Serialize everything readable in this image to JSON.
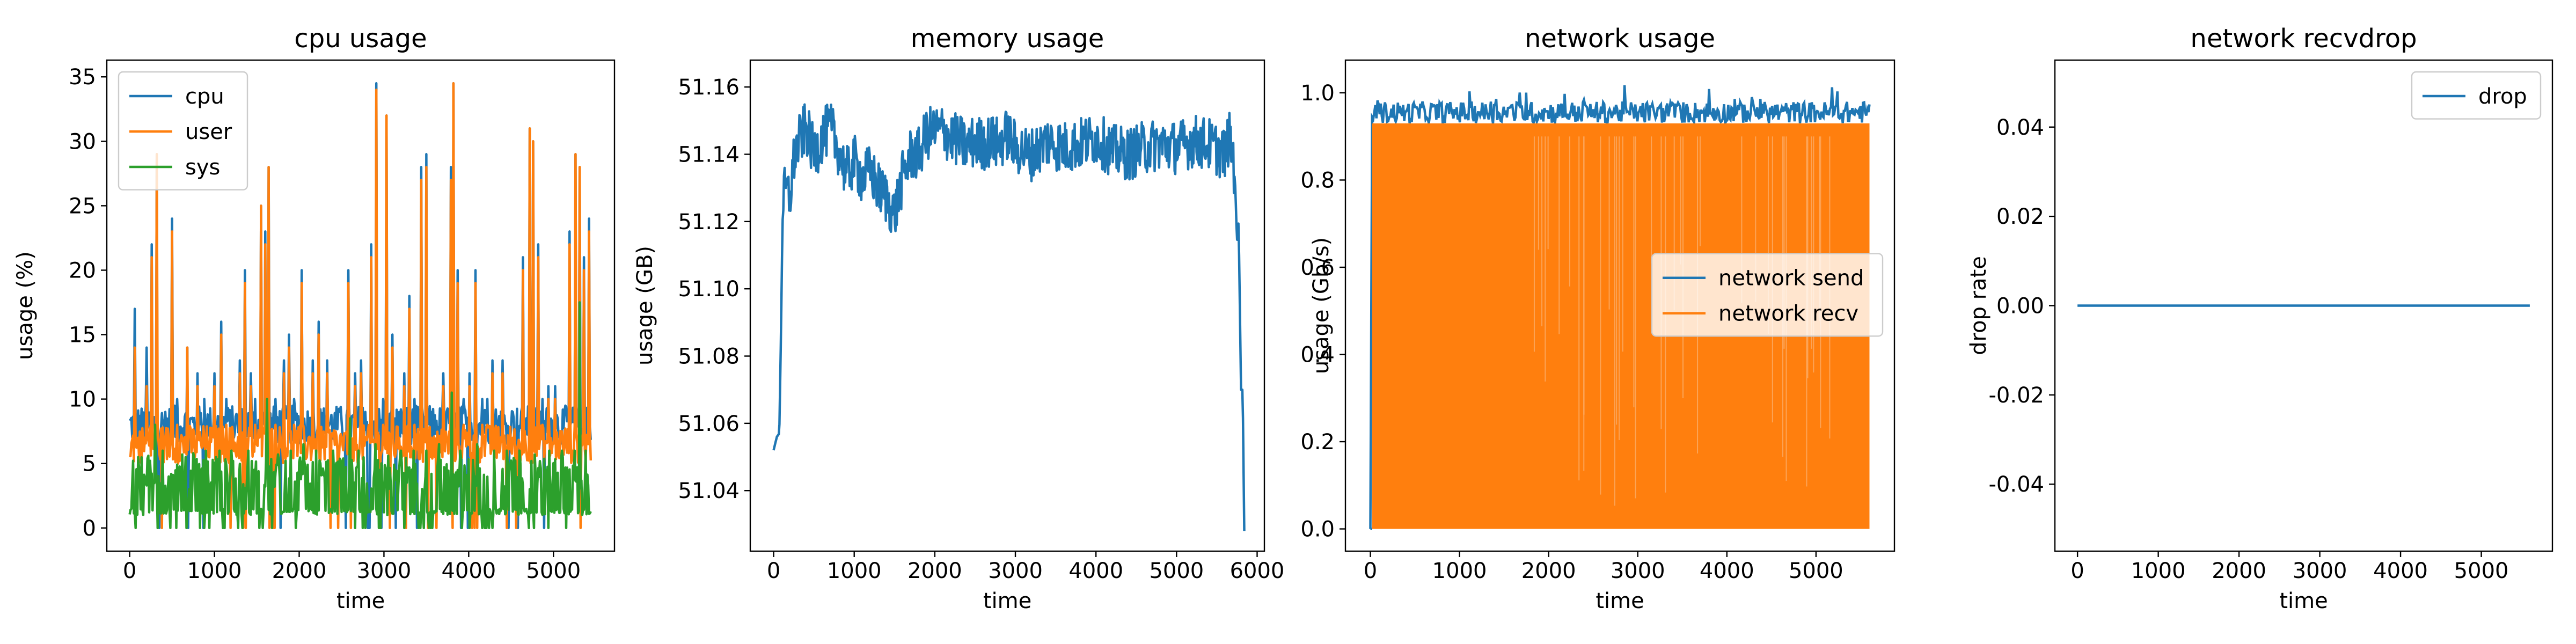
{
  "chart_data": [
    {
      "type": "line",
      "title": "cpu usage",
      "xlabel": "time",
      "ylabel": "usage (%)",
      "xlim": [
        -270,
        5720
      ],
      "ylim": [
        -1.8,
        36.3
      ],
      "xticks": [
        0,
        1000,
        2000,
        3000,
        4000,
        5000
      ],
      "yticks": [
        0,
        5,
        10,
        15,
        20,
        25,
        30,
        35
      ],
      "legend_location": "upper left",
      "x_max": 5440,
      "series": [
        {
          "name": "cpu",
          "color": "#1f77b4",
          "baseline_band": [
            6.5,
            9.5
          ],
          "spikes": [
            [
              60,
              17
            ],
            [
              200,
              14
            ],
            [
              260,
              22
            ],
            [
              320,
              29
            ],
            [
              420,
              9
            ],
            [
              500,
              24
            ],
            [
              560,
              10
            ],
            [
              680,
              14
            ],
            [
              800,
              12
            ],
            [
              880,
              10
            ],
            [
              1000,
              12
            ],
            [
              1080,
              16
            ],
            [
              1140,
              10
            ],
            [
              1300,
              13
            ],
            [
              1360,
              20
            ],
            [
              1430,
              12
            ],
            [
              1480,
              10
            ],
            [
              1550,
              25
            ],
            [
              1600,
              23
            ],
            [
              1640,
              28
            ],
            [
              1720,
              10
            ],
            [
              1820,
              13
            ],
            [
              1880,
              15
            ],
            [
              1940,
              10
            ],
            [
              2030,
              20
            ],
            [
              2160,
              13
            ],
            [
              2230,
              16
            ],
            [
              2330,
              13
            ],
            [
              2480,
              9
            ],
            [
              2580,
              20
            ],
            [
              2660,
              12
            ],
            [
              2730,
              13
            ],
            [
              2780,
              9
            ],
            [
              2850,
              22
            ],
            [
              2910,
              34.5
            ],
            [
              2990,
              10
            ],
            [
              3030,
              32
            ],
            [
              3100,
              15
            ],
            [
              3180,
              9
            ],
            [
              3240,
              12
            ],
            [
              3300,
              18
            ],
            [
              3360,
              10
            ],
            [
              3440,
              28
            ],
            [
              3500,
              29
            ],
            [
              3560,
              9
            ],
            [
              3700,
              12
            ],
            [
              3790,
              28
            ],
            [
              3820,
              34.5
            ],
            [
              3870,
              20
            ],
            [
              3940,
              10
            ],
            [
              4010,
              12
            ],
            [
              4080,
              20
            ],
            [
              4160,
              10
            ],
            [
              4220,
              10
            ],
            [
              4280,
              13
            ],
            [
              4400,
              13
            ],
            [
              4520,
              9
            ],
            [
              4640,
              21
            ],
            [
              4720,
              31
            ],
            [
              4760,
              30
            ],
            [
              4820,
              22
            ],
            [
              4870,
              10
            ],
            [
              4940,
              11
            ],
            [
              5020,
              11
            ],
            [
              5130,
              9
            ],
            [
              5190,
              23
            ],
            [
              5260,
              29
            ],
            [
              5310,
              28
            ],
            [
              5360,
              21
            ],
            [
              5420,
              24
            ]
          ]
        },
        {
          "name": "user",
          "color": "#ff7f0e",
          "baseline_band": [
            5,
            8
          ],
          "spikes": [
            [
              60,
              14
            ],
            [
              200,
              11
            ],
            [
              260,
              21
            ],
            [
              320,
              29
            ],
            [
              420,
              7
            ],
            [
              500,
              23
            ],
            [
              560,
              8
            ],
            [
              680,
              14
            ],
            [
              800,
              11
            ],
            [
              880,
              7
            ],
            [
              1000,
              11
            ],
            [
              1080,
              15
            ],
            [
              1140,
              8
            ],
            [
              1300,
              12
            ],
            [
              1360,
              19
            ],
            [
              1430,
              11
            ],
            [
              1480,
              8
            ],
            [
              1550,
              25
            ],
            [
              1600,
              22
            ],
            [
              1640,
              28
            ],
            [
              1720,
              8
            ],
            [
              1820,
              12
            ],
            [
              1880,
              14
            ],
            [
              1940,
              8
            ],
            [
              2030,
              19
            ],
            [
              2160,
              12
            ],
            [
              2230,
              15
            ],
            [
              2330,
              12
            ],
            [
              2480,
              7
            ],
            [
              2580,
              19
            ],
            [
              2660,
              11
            ],
            [
              2730,
              12
            ],
            [
              2780,
              7
            ],
            [
              2850,
              21
            ],
            [
              2910,
              34
            ],
            [
              2990,
              8
            ],
            [
              3030,
              32
            ],
            [
              3100,
              14
            ],
            [
              3180,
              7
            ],
            [
              3240,
              11
            ],
            [
              3300,
              17
            ],
            [
              3360,
              8
            ],
            [
              3440,
              27
            ],
            [
              3500,
              28
            ],
            [
              3560,
              7
            ],
            [
              3700,
              11
            ],
            [
              3790,
              27
            ],
            [
              3820,
              34.5
            ],
            [
              3870,
              19
            ],
            [
              3940,
              8
            ],
            [
              4010,
              11
            ],
            [
              4080,
              19
            ],
            [
              4160,
              8
            ],
            [
              4220,
              8
            ],
            [
              4280,
              12
            ],
            [
              4400,
              12
            ],
            [
              4520,
              7
            ],
            [
              4640,
              20
            ],
            [
              4720,
              31
            ],
            [
              4760,
              30
            ],
            [
              4820,
              21
            ],
            [
              4870,
              8
            ],
            [
              4940,
              10
            ],
            [
              5020,
              10
            ],
            [
              5130,
              7
            ],
            [
              5190,
              22
            ],
            [
              5260,
              29
            ],
            [
              5310,
              28
            ],
            [
              5360,
              20
            ],
            [
              5420,
              23
            ]
          ]
        },
        {
          "name": "sys",
          "color": "#2ca02c",
          "baseline_band": [
            0,
            5.5
          ],
          "spikes": [
            [
              100,
              5.5
            ],
            [
              220,
              5.6
            ],
            [
              300,
              8
            ],
            [
              390,
              6
            ],
            [
              480,
              0
            ],
            [
              620,
              5.7
            ],
            [
              750,
              5.8
            ],
            [
              900,
              6
            ],
            [
              1060,
              6
            ],
            [
              1200,
              6
            ],
            [
              1400,
              6
            ],
            [
              1620,
              10
            ],
            [
              1680,
              0
            ],
            [
              1750,
              5.7
            ],
            [
              1900,
              6
            ],
            [
              2050,
              6.5
            ],
            [
              2200,
              6
            ],
            [
              2400,
              6
            ],
            [
              2600,
              8.5
            ],
            [
              2700,
              6
            ],
            [
              2900,
              6.5
            ],
            [
              3050,
              5.6
            ],
            [
              3200,
              6
            ],
            [
              3350,
              6
            ],
            [
              3500,
              6
            ],
            [
              3650,
              6.5
            ],
            [
              3800,
              10.5
            ],
            [
              3900,
              6
            ],
            [
              4100,
              6.5
            ],
            [
              4300,
              6
            ],
            [
              4450,
              6
            ],
            [
              4600,
              6
            ],
            [
              4780,
              5.7
            ],
            [
              4950,
              6
            ],
            [
              5100,
              6
            ],
            [
              5250,
              6
            ],
            [
              5310,
              17.5
            ],
            [
              5380,
              6
            ]
          ]
        }
      ]
    },
    {
      "type": "line",
      "title": "memory usage",
      "xlabel": "time",
      "ylabel": "usage (GB)",
      "xlim": [
        -290,
        6090
      ],
      "ylim": [
        51.022,
        51.168
      ],
      "xticks": [
        0,
        1000,
        2000,
        3000,
        4000,
        5000,
        6000
      ],
      "yticks": [
        51.04,
        51.06,
        51.08,
        51.1,
        51.12,
        51.14,
        51.16
      ],
      "series": [
        {
          "name": "",
          "color": "#1f77b4",
          "points": [
            [
              0,
              51.052
            ],
            [
              40,
              51.056
            ],
            [
              70,
              51.057
            ],
            [
              90,
              51.085
            ],
            [
              110,
              51.12
            ],
            [
              140,
              51.13
            ],
            [
              200,
              51.127
            ],
            [
              260,
              51.14
            ],
            [
              300,
              51.143
            ],
            [
              400,
              51.148
            ],
            [
              500,
              51.14
            ],
            [
              600,
              51.145
            ],
            [
              700,
              51.148
            ],
            [
              800,
              51.142
            ],
            [
              900,
              51.134
            ],
            [
              1000,
              51.138
            ],
            [
              1100,
              51.133
            ],
            [
              1200,
              51.135
            ],
            [
              1300,
              51.13
            ],
            [
              1400,
              51.127
            ],
            [
              1500,
              51.122
            ],
            [
              1600,
              51.133
            ],
            [
              1700,
              51.14
            ],
            [
              1800,
              51.14
            ],
            [
              1900,
              51.146
            ],
            [
              2000,
              51.147
            ],
            [
              2100,
              51.147
            ],
            [
              2200,
              51.145
            ],
            [
              2300,
              51.144
            ],
            [
              2400,
              51.142
            ],
            [
              2500,
              51.144
            ],
            [
              2600,
              51.143
            ],
            [
              2700,
              51.144
            ],
            [
              2800,
              51.143
            ],
            [
              2900,
              51.146
            ],
            [
              3000,
              51.142
            ],
            [
              3200,
              51.14
            ],
            [
              3400,
              51.144
            ],
            [
              3600,
              51.142
            ],
            [
              3800,
              51.143
            ],
            [
              4000,
              51.145
            ],
            [
              4200,
              51.141
            ],
            [
              4400,
              51.14
            ],
            [
              4600,
              51.142
            ],
            [
              4800,
              51.143
            ],
            [
              5000,
              51.142
            ],
            [
              5200,
              51.144
            ],
            [
              5400,
              51.143
            ],
            [
              5600,
              51.14
            ],
            [
              5650,
              51.145
            ],
            [
              5700,
              51.14
            ],
            [
              5730,
              51.13
            ],
            [
              5750,
              51.114
            ],
            [
              5770,
              51.12
            ],
            [
              5800,
              51.07
            ],
            [
              5820,
              51.07
            ],
            [
              5840,
              51.028
            ]
          ],
          "noise_amplitude": 0.008
        }
      ]
    },
    {
      "type": "area",
      "title": "network usage",
      "xlabel": "time",
      "ylabel": "usage (Gb/s)",
      "xlim": [
        -280,
        5880
      ],
      "ylim": [
        -0.051,
        1.075
      ],
      "xticks": [
        0,
        1000,
        2000,
        3000,
        4000,
        5000
      ],
      "yticks": [
        0.0,
        0.2,
        0.4,
        0.6,
        0.8,
        1.0
      ],
      "legend_location": "center right",
      "x_max": 5600,
      "series": [
        {
          "name": "network send",
          "color": "#1f77b4",
          "band": [
            0.93,
            1.02
          ]
        },
        {
          "name": "network recv",
          "color": "#ff7f0e",
          "band": [
            0.0,
            0.93
          ]
        }
      ]
    },
    {
      "type": "line",
      "title": "network recvdrop",
      "xlabel": "time",
      "ylabel": "drop rate",
      "xlim": [
        -280,
        5880
      ],
      "ylim": [
        -0.055,
        0.055
      ],
      "xticks": [
        0,
        1000,
        2000,
        3000,
        4000,
        5000
      ],
      "yticks": [
        -0.04,
        -0.02,
        0.0,
        0.02,
        0.04
      ],
      "legend_location": "upper right",
      "series": [
        {
          "name": "drop",
          "color": "#1f77b4",
          "points": [
            [
              0,
              0
            ],
            [
              5600,
              0
            ]
          ]
        }
      ]
    }
  ]
}
